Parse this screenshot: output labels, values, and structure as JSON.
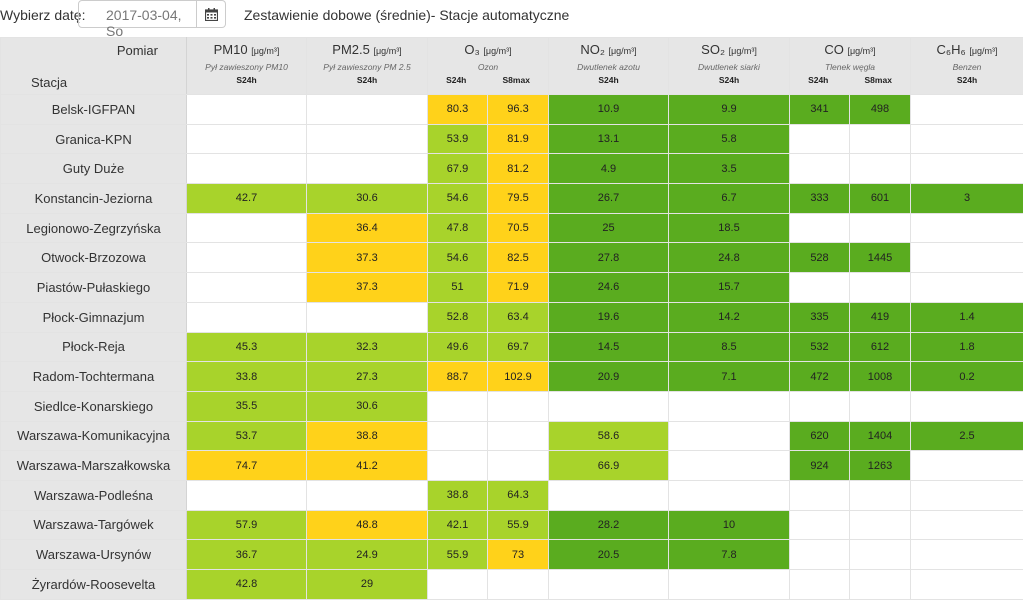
{
  "header": {
    "date_label": "Wybierz datę:",
    "date_value": "2017-03-04, So",
    "title": "Zestawienie dobowe (średnie)- Stacje automatyczne"
  },
  "table": {
    "corner_top": "Pomiar",
    "corner_bottom": "Stacja",
    "pollutants": [
      {
        "name": "PM10",
        "unit": "[μg/m³]",
        "desc": "Pył zawieszony PM10",
        "subs": [
          "S24h"
        ]
      },
      {
        "name": "PM2.5",
        "unit": "[μg/m³]",
        "desc": "Pył zawieszony PM 2.5",
        "subs": [
          "S24h"
        ]
      },
      {
        "name": "O₃",
        "unit": "[μg/m³]",
        "desc": "Ozon",
        "subs": [
          "S24h",
          "S8max"
        ]
      },
      {
        "name": "NO₂",
        "unit": "[μg/m³]",
        "desc": "Dwutlenek azotu",
        "subs": [
          "S24h"
        ]
      },
      {
        "name": "SO₂",
        "unit": "[μg/m³]",
        "desc": "Dwutlenek siarki",
        "subs": [
          "S24h"
        ]
      },
      {
        "name": "CO",
        "unit": "[μg/m³]",
        "desc": "Tlenek węgla",
        "subs": [
          "S24h",
          "S8max"
        ]
      },
      {
        "name": "C₆H₆",
        "unit": "[μg/m³]",
        "desc": "Benzen",
        "subs": [
          "S24h"
        ]
      }
    ],
    "colors": {
      "light_green": "#a8d32b",
      "dark_green": "#5aac1f",
      "yellow": "#ffd21a",
      "empty": "#ffffff"
    },
    "rows": [
      {
        "station": "Belsk-IGFPAN",
        "cells": [
          [
            "",
            ""
          ],
          [
            "",
            ""
          ],
          [
            "80.3",
            "ye"
          ],
          [
            "96.3",
            "ye"
          ],
          [
            "10.9",
            "dg"
          ],
          [
            "9.9",
            "dg"
          ],
          [
            "341",
            "dg"
          ],
          [
            "498",
            "dg"
          ],
          [
            "",
            ""
          ]
        ]
      },
      {
        "station": "Granica-KPN",
        "cells": [
          [
            "",
            ""
          ],
          [
            "",
            ""
          ],
          [
            "53.9",
            "lg"
          ],
          [
            "81.9",
            "ye"
          ],
          [
            "13.1",
            "dg"
          ],
          [
            "5.8",
            "dg"
          ],
          [
            "",
            ""
          ],
          [
            "",
            ""
          ],
          [
            "",
            ""
          ]
        ]
      },
      {
        "station": "Guty Duże",
        "cells": [
          [
            "",
            ""
          ],
          [
            "",
            ""
          ],
          [
            "67.9",
            "lg"
          ],
          [
            "81.2",
            "ye"
          ],
          [
            "4.9",
            "dg"
          ],
          [
            "3.5",
            "dg"
          ],
          [
            "",
            ""
          ],
          [
            "",
            ""
          ],
          [
            "",
            ""
          ]
        ]
      },
      {
        "station": "Konstancin-Jeziorna",
        "cells": [
          [
            "42.7",
            "lg"
          ],
          [
            "30.6",
            "lg"
          ],
          [
            "54.6",
            "lg"
          ],
          [
            "79.5",
            "ye"
          ],
          [
            "26.7",
            "dg"
          ],
          [
            "6.7",
            "dg"
          ],
          [
            "333",
            "dg"
          ],
          [
            "601",
            "dg"
          ],
          [
            "3",
            "dg"
          ]
        ]
      },
      {
        "station": "Legionowo-Zegrzyńska",
        "cells": [
          [
            "",
            ""
          ],
          [
            "36.4",
            "ye"
          ],
          [
            "47.8",
            "lg"
          ],
          [
            "70.5",
            "ye"
          ],
          [
            "25",
            "dg"
          ],
          [
            "18.5",
            "dg"
          ],
          [
            "",
            ""
          ],
          [
            "",
            ""
          ],
          [
            "",
            ""
          ]
        ]
      },
      {
        "station": "Otwock-Brzozowa",
        "cells": [
          [
            "",
            ""
          ],
          [
            "37.3",
            "ye"
          ],
          [
            "54.6",
            "lg"
          ],
          [
            "82.5",
            "ye"
          ],
          [
            "27.8",
            "dg"
          ],
          [
            "24.8",
            "dg"
          ],
          [
            "528",
            "dg"
          ],
          [
            "1445",
            "dg"
          ],
          [
            "",
            ""
          ]
        ]
      },
      {
        "station": "Piastów-Pułaskiego",
        "cells": [
          [
            "",
            ""
          ],
          [
            "37.3",
            "ye"
          ],
          [
            "51",
            "lg"
          ],
          [
            "71.9",
            "ye"
          ],
          [
            "24.6",
            "dg"
          ],
          [
            "15.7",
            "dg"
          ],
          [
            "",
            ""
          ],
          [
            "",
            ""
          ],
          [
            "",
            ""
          ]
        ]
      },
      {
        "station": "Płock-Gimnazjum",
        "cells": [
          [
            "",
            ""
          ],
          [
            "",
            ""
          ],
          [
            "52.8",
            "lg"
          ],
          [
            "63.4",
            "lg"
          ],
          [
            "19.6",
            "dg"
          ],
          [
            "14.2",
            "dg"
          ],
          [
            "335",
            "dg"
          ],
          [
            "419",
            "dg"
          ],
          [
            "1.4",
            "dg"
          ]
        ]
      },
      {
        "station": "Płock-Reja",
        "cells": [
          [
            "45.3",
            "lg"
          ],
          [
            "32.3",
            "lg"
          ],
          [
            "49.6",
            "lg"
          ],
          [
            "69.7",
            "lg"
          ],
          [
            "14.5",
            "dg"
          ],
          [
            "8.5",
            "dg"
          ],
          [
            "532",
            "dg"
          ],
          [
            "612",
            "dg"
          ],
          [
            "1.8",
            "dg"
          ]
        ]
      },
      {
        "station": "Radom-Tochtermana",
        "cells": [
          [
            "33.8",
            "lg"
          ],
          [
            "27.3",
            "lg"
          ],
          [
            "88.7",
            "ye"
          ],
          [
            "102.9",
            "ye"
          ],
          [
            "20.9",
            "dg"
          ],
          [
            "7.1",
            "dg"
          ],
          [
            "472",
            "dg"
          ],
          [
            "1008",
            "dg"
          ],
          [
            "0.2",
            "dg"
          ]
        ]
      },
      {
        "station": "Siedlce-Konarskiego",
        "cells": [
          [
            "35.5",
            "lg"
          ],
          [
            "30.6",
            "lg"
          ],
          [
            "",
            ""
          ],
          [
            "",
            ""
          ],
          [
            "",
            ""
          ],
          [
            "",
            ""
          ],
          [
            "",
            ""
          ],
          [
            "",
            ""
          ],
          [
            "",
            ""
          ]
        ]
      },
      {
        "station": "Warszawa-Komunikacyjna",
        "cells": [
          [
            "53.7",
            "lg"
          ],
          [
            "38.8",
            "ye"
          ],
          [
            "",
            ""
          ],
          [
            "",
            ""
          ],
          [
            "58.6",
            "lg"
          ],
          [
            "",
            ""
          ],
          [
            "620",
            "dg"
          ],
          [
            "1404",
            "dg"
          ],
          [
            "2.5",
            "dg"
          ]
        ]
      },
      {
        "station": "Warszawa-Marszałkowska",
        "cells": [
          [
            "74.7",
            "ye"
          ],
          [
            "41.2",
            "ye"
          ],
          [
            "",
            ""
          ],
          [
            "",
            ""
          ],
          [
            "66.9",
            "lg"
          ],
          [
            "",
            ""
          ],
          [
            "924",
            "dg"
          ],
          [
            "1263",
            "dg"
          ],
          [
            "",
            ""
          ]
        ]
      },
      {
        "station": "Warszawa-Podleśna",
        "cells": [
          [
            "",
            ""
          ],
          [
            "",
            ""
          ],
          [
            "38.8",
            "lg"
          ],
          [
            "64.3",
            "lg"
          ],
          [
            "",
            ""
          ],
          [
            "",
            ""
          ],
          [
            "",
            ""
          ],
          [
            "",
            ""
          ],
          [
            "",
            ""
          ]
        ]
      },
      {
        "station": "Warszawa-Targówek",
        "cells": [
          [
            "57.9",
            "lg"
          ],
          [
            "48.8",
            "ye"
          ],
          [
            "42.1",
            "lg"
          ],
          [
            "55.9",
            "lg"
          ],
          [
            "28.2",
            "dg"
          ],
          [
            "10",
            "dg"
          ],
          [
            "",
            ""
          ],
          [
            "",
            ""
          ],
          [
            "",
            ""
          ]
        ]
      },
      {
        "station": "Warszawa-Ursynów",
        "cells": [
          [
            "36.7",
            "lg"
          ],
          [
            "24.9",
            "lg"
          ],
          [
            "55.9",
            "lg"
          ],
          [
            "73",
            "ye"
          ],
          [
            "20.5",
            "dg"
          ],
          [
            "7.8",
            "dg"
          ],
          [
            "",
            ""
          ],
          [
            "",
            ""
          ],
          [
            "",
            ""
          ]
        ]
      },
      {
        "station": "Żyrardów-Roosevelta",
        "cells": [
          [
            "42.8",
            "lg"
          ],
          [
            "29",
            "lg"
          ],
          [
            "",
            ""
          ],
          [
            "",
            ""
          ],
          [
            "",
            ""
          ],
          [
            "",
            ""
          ],
          [
            "",
            ""
          ],
          [
            "",
            ""
          ],
          [
            "",
            ""
          ]
        ]
      }
    ]
  }
}
